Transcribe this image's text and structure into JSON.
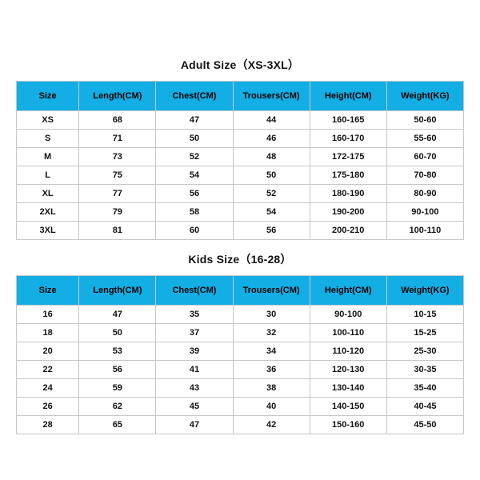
{
  "adult": {
    "title": "Adult Size（XS-3XL）",
    "columns": [
      "Size",
      "Length(CM)",
      "Chest(CM)",
      "Trousers(CM)",
      "Height(CM)",
      "Weight(KG)"
    ],
    "rows": [
      [
        "XS",
        "68",
        "47",
        "44",
        "160-165",
        "50-60"
      ],
      [
        "S",
        "71",
        "50",
        "46",
        "160-170",
        "55-60"
      ],
      [
        "M",
        "73",
        "52",
        "48",
        "172-175",
        "60-70"
      ],
      [
        "L",
        "75",
        "54",
        "50",
        "175-180",
        "70-80"
      ],
      [
        "XL",
        "77",
        "56",
        "52",
        "180-190",
        "80-90"
      ],
      [
        "2XL",
        "79",
        "58",
        "54",
        "190-200",
        "90-100"
      ],
      [
        "3XL",
        "81",
        "60",
        "56",
        "200-210",
        "100-110"
      ]
    ]
  },
  "kids": {
    "title": "Kids Size（16-28）",
    "columns": [
      "Size",
      "Length(CM)",
      "Chest(CM)",
      "Trousers(CM)",
      "Height(CM)",
      "Weight(KG)"
    ],
    "rows": [
      [
        "16",
        "47",
        "35",
        "30",
        "90-100",
        "10-15"
      ],
      [
        "18",
        "50",
        "37",
        "32",
        "100-110",
        "15-25"
      ],
      [
        "20",
        "53",
        "39",
        "34",
        "110-120",
        "25-30"
      ],
      [
        "22",
        "56",
        "41",
        "36",
        "120-130",
        "30-35"
      ],
      [
        "24",
        "59",
        "43",
        "38",
        "130-140",
        "35-40"
      ],
      [
        "26",
        "62",
        "45",
        "40",
        "140-150",
        "40-45"
      ],
      [
        "28",
        "65",
        "47",
        "42",
        "150-160",
        "45-50"
      ]
    ]
  },
  "style": {
    "header_bg": "#12aee4",
    "border_color": "#c7c7c7",
    "title_fontsize": 14,
    "header_fontsize": 11,
    "cell_fontsize": 11
  }
}
